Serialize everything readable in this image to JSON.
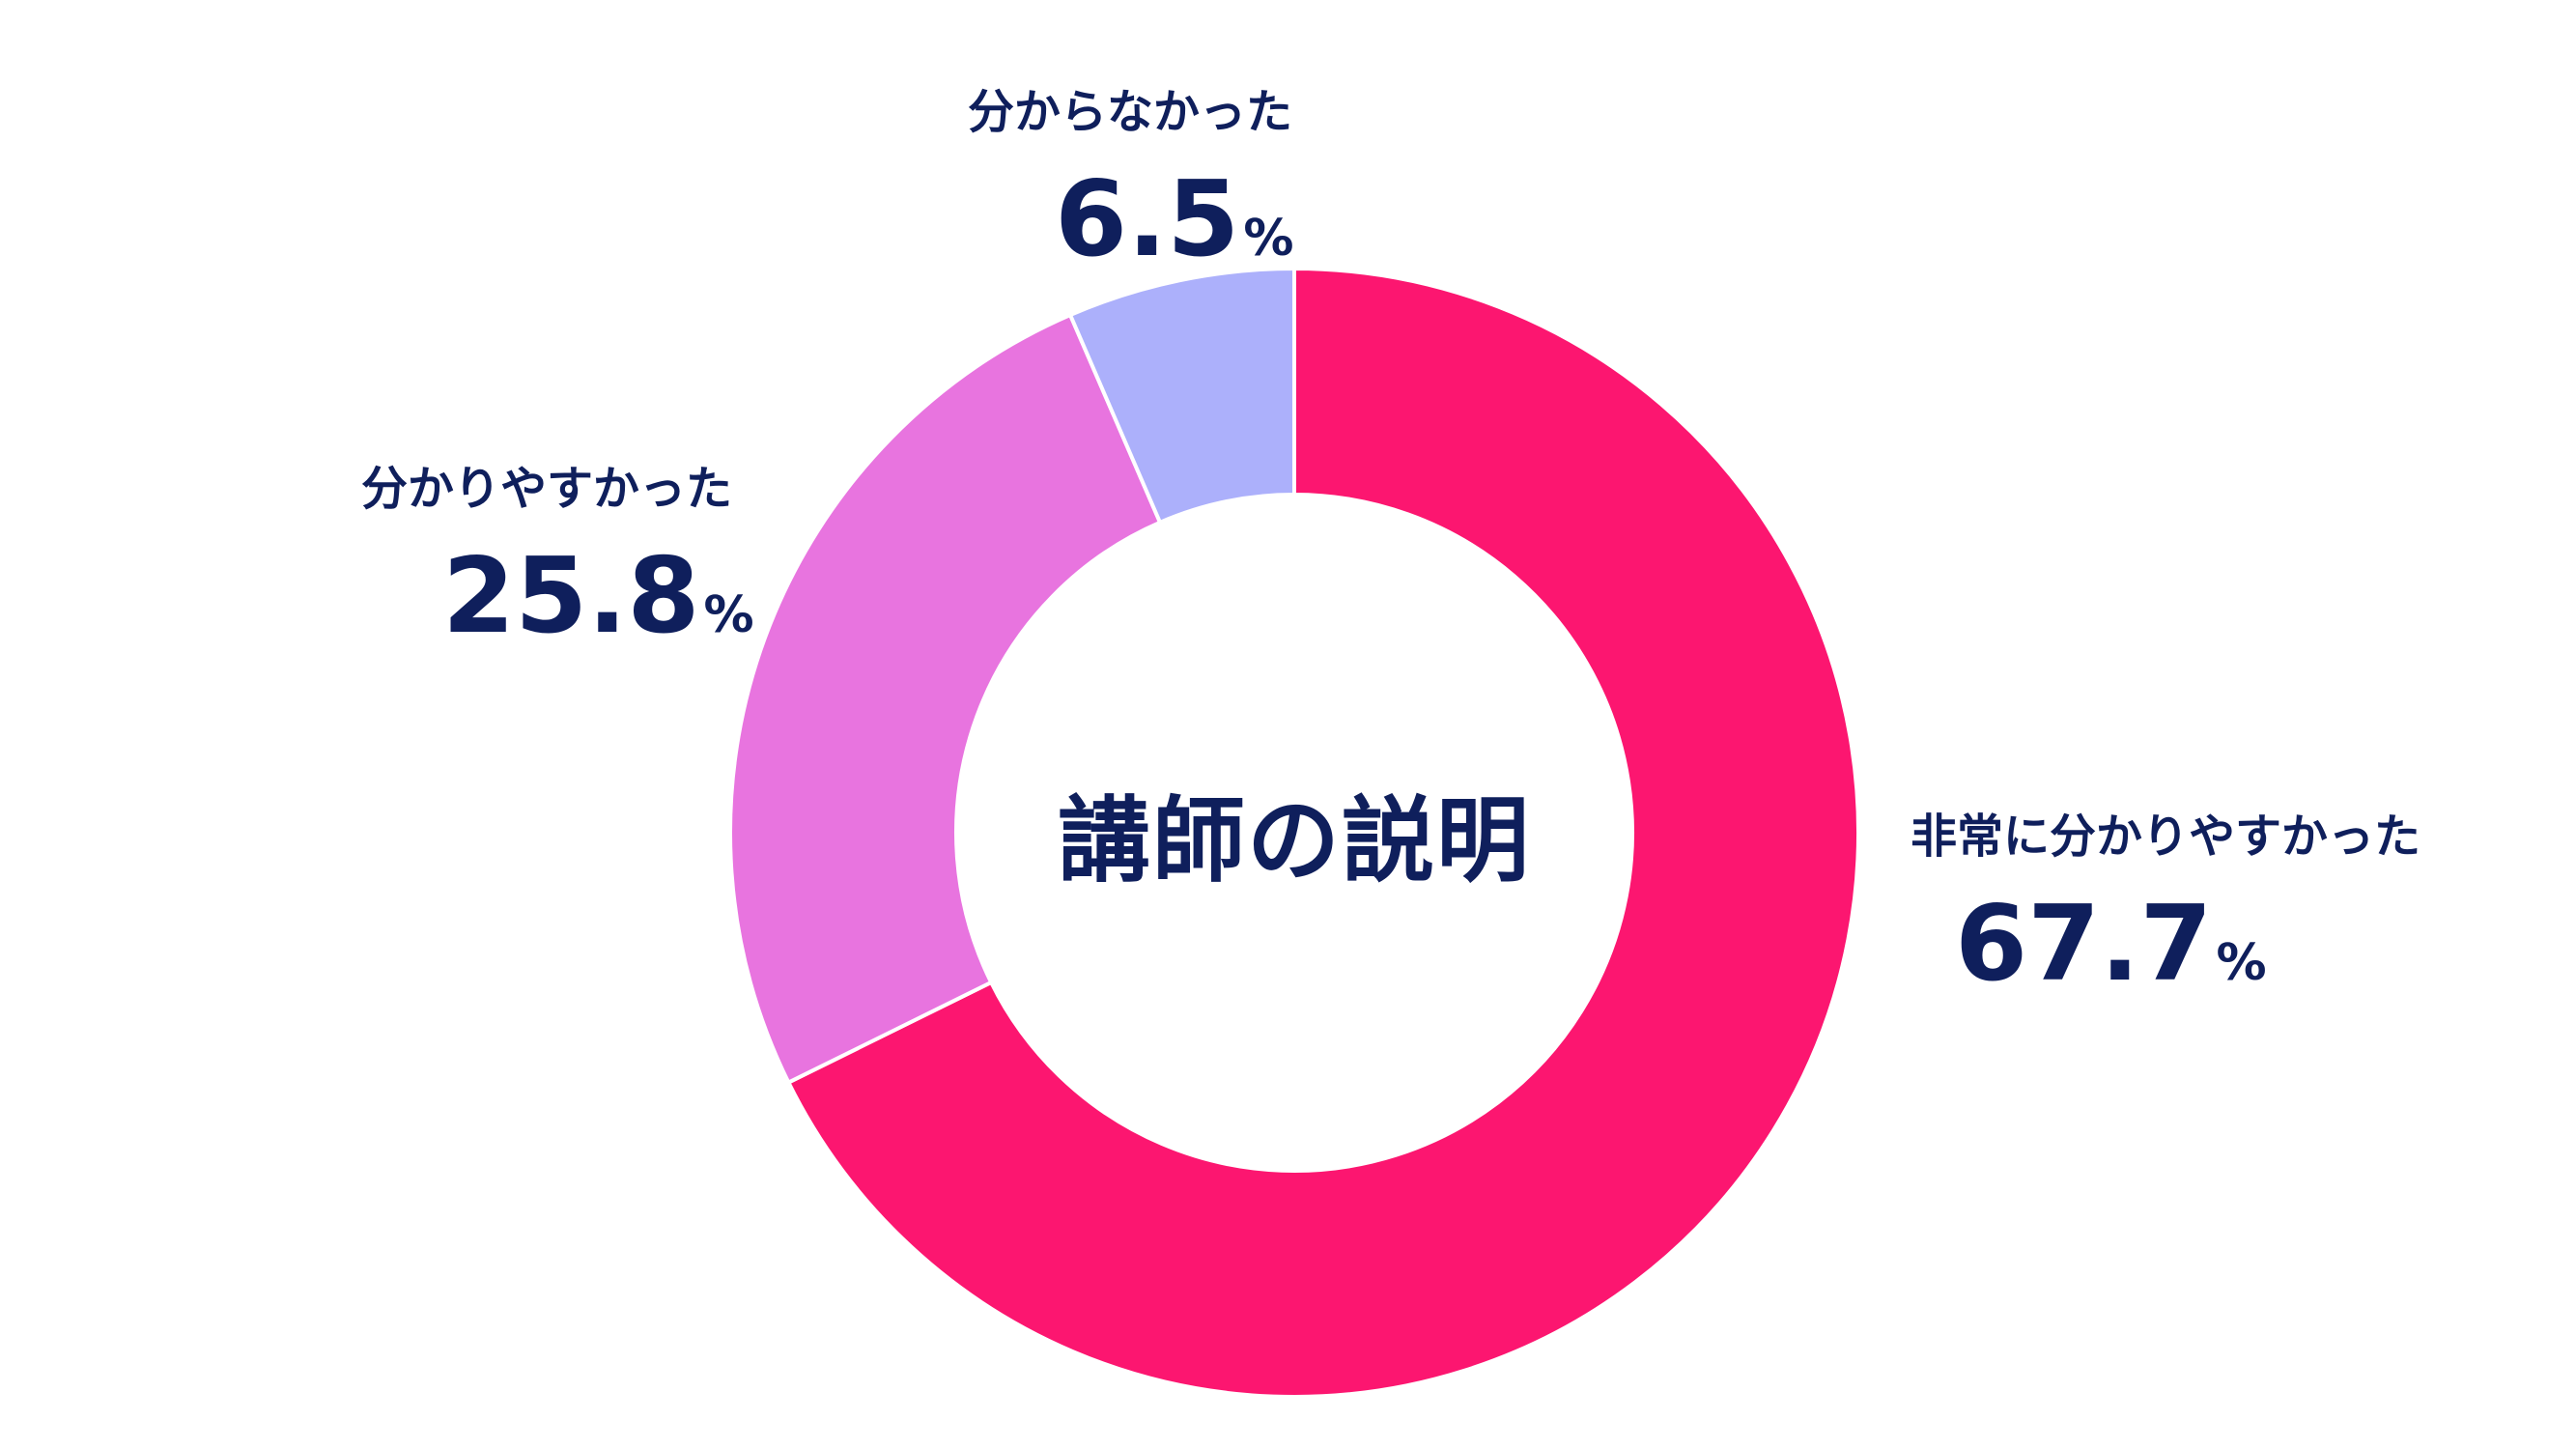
{
  "chart_data": {
    "type": "pie",
    "subtype": "donut",
    "title": "講師の説明",
    "categories": [
      "非常に分かりやすかった",
      "分かりやすかった",
      "分からなかった"
    ],
    "values": [
      67.7,
      25.8,
      6.5
    ],
    "unit": "%",
    "colors": [
      "#fc1670",
      "#e874df",
      "#acb0fb"
    ],
    "start_angle_deg": 0,
    "direction": "clockwise",
    "legend": "none (labels placed beside slices)"
  },
  "center": {
    "title": "講師の説明"
  },
  "labels": [
    {
      "name": "非常に分かりやすかった",
      "value": "67.7",
      "unit": "%"
    },
    {
      "name": "分かりやすかった",
      "value": "25.8",
      "unit": "%"
    },
    {
      "name": "分からなかった",
      "value": "6.5",
      "unit": "%"
    }
  ],
  "style": {
    "text_color": "#0f1f5c",
    "background": "#ffffff",
    "separator": "#ffffff"
  }
}
